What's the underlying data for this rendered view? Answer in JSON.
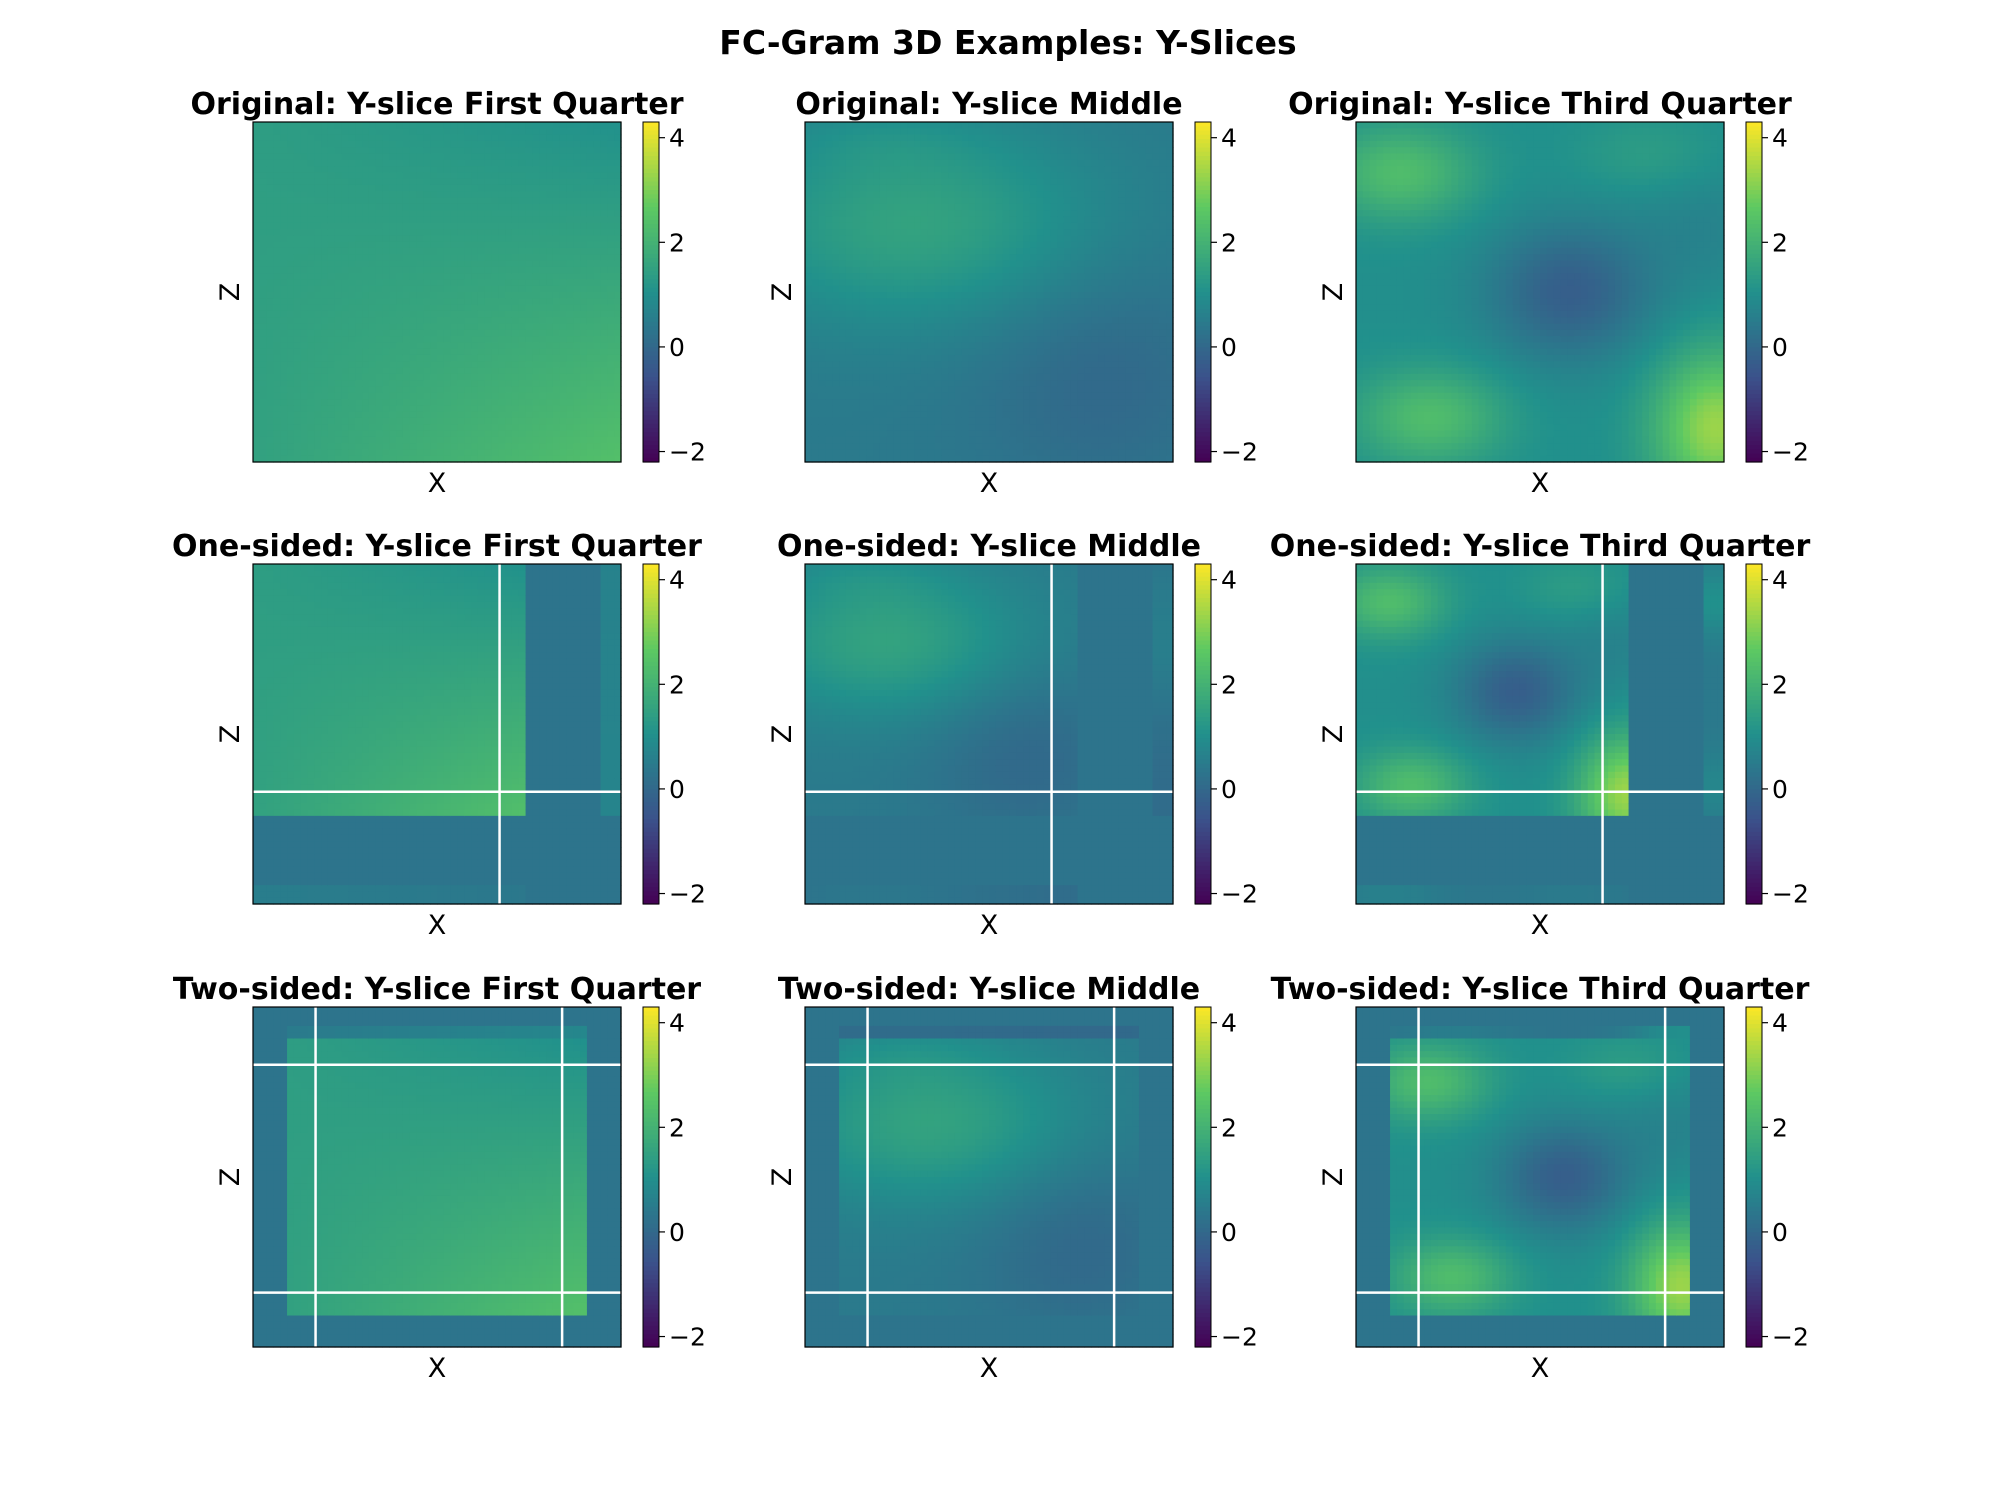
{
  "figure": {
    "title": "FC-Gram 3D Examples: Y-Slices",
    "xlabel": "X",
    "ylabel": "Z"
  },
  "colors": {
    "colormap": "viridis",
    "stops": [
      "#440154",
      "#3b528b",
      "#21918c",
      "#5ec962",
      "#fde725"
    ],
    "line_color": "#ffffff"
  },
  "chart_data": {
    "type": "heatmap",
    "colormap": "viridis",
    "color_range": [
      -2.2,
      4.3
    ],
    "colorbar_ticks": [
      -2,
      0,
      2,
      4
    ],
    "colorbar_tick_labels": [
      "−2",
      "0",
      "2",
      "4"
    ],
    "row_titles": [
      "Original",
      "One-sided",
      "Two-sided"
    ],
    "col_titles": [
      "Y-slice First Quarter",
      "Y-slice Middle",
      "Y-slice Third Quarter"
    ],
    "panels": [
      {
        "title": "Original: Y-slice First Quarter",
        "xlabel": "X",
        "ylabel": "Z",
        "extension": "none",
        "field": "first_quarter"
      },
      {
        "title": "Original: Y-slice Middle",
        "xlabel": "X",
        "ylabel": "Z",
        "extension": "none",
        "field": "middle"
      },
      {
        "title": "Original: Y-slice Third Quarter",
        "xlabel": "X",
        "ylabel": "Z",
        "extension": "none",
        "field": "third_quarter"
      },
      {
        "title": "One-sided: Y-slice First Quarter",
        "xlabel": "X",
        "ylabel": "Z",
        "extension": "one-sided",
        "field": "first_quarter"
      },
      {
        "title": "One-sided: Y-slice Middle",
        "xlabel": "X",
        "ylabel": "Z",
        "extension": "one-sided",
        "field": "middle"
      },
      {
        "title": "One-sided: Y-slice Third Quarter",
        "xlabel": "X",
        "ylabel": "Z",
        "extension": "one-sided",
        "field": "third_quarter"
      },
      {
        "title": "Two-sided: Y-slice First Quarter",
        "xlabel": "X",
        "ylabel": "Z",
        "extension": "two-sided",
        "field": "first_quarter"
      },
      {
        "title": "Two-sided: Y-slice Middle",
        "xlabel": "X",
        "ylabel": "Z",
        "extension": "two-sided",
        "field": "middle"
      },
      {
        "title": "Two-sided: Y-slice Third Quarter",
        "xlabel": "X",
        "ylabel": "Z",
        "extension": "two-sided",
        "field": "third_quarter"
      }
    ],
    "boundary_lines": {
      "one-sided": {
        "vertical": [
          0.67
        ],
        "horizontal": [
          0.67
        ]
      },
      "two-sided": {
        "vertical": [
          0.17,
          0.84
        ],
        "horizontal": [
          0.17,
          0.84
        ]
      }
    },
    "legend": "none",
    "grid": false
  }
}
